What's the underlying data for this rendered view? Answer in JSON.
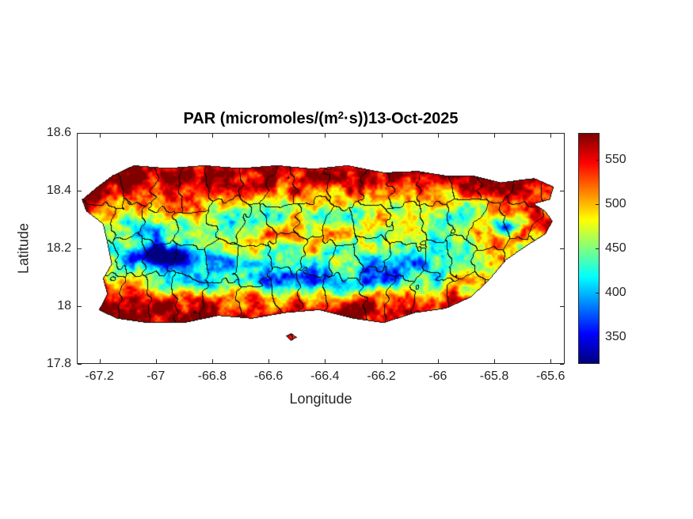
{
  "chart_data": {
    "type": "heatmap",
    "title": "PAR (micromoles/(m^2·s))13-Oct-2025",
    "title_parts": {
      "prefix": "PAR (micromoles/(m",
      "superscript": "2",
      "suffix": "·s))13-Oct-2025"
    },
    "variable": "PAR",
    "units": "micromoles/(m^2·s)",
    "date": "13-Oct-2025",
    "xlabel": "Longitude",
    "ylabel": "Latitude",
    "xlim": [
      -67.28,
      -65.55
    ],
    "ylim": [
      17.8,
      18.6
    ],
    "x_ticks": {
      "values": [
        -67.2,
        -67,
        -66.8,
        -66.6,
        -66.4,
        -66.2,
        -66,
        -65.8,
        -65.6
      ],
      "labels": [
        "-67.2",
        "-67",
        "-66.8",
        "-66.6",
        "-66.4",
        "-66.2",
        "-66",
        "-65.8",
        "-65.6"
      ]
    },
    "y_ticks": {
      "values": [
        17.8,
        18,
        18.2,
        18.4,
        18.6
      ],
      "labels": [
        "17.8",
        "18",
        "18.2",
        "18.4",
        "18.6"
      ]
    },
    "grid": false,
    "legend": "none",
    "colorbar": {
      "position": "right",
      "colormap": "jet",
      "min": 320,
      "max": 580,
      "ticks": {
        "values": [
          350,
          400,
          450,
          500,
          550
        ],
        "labels": [
          "350",
          "400",
          "450",
          "500",
          "550"
        ]
      }
    },
    "region": "Puerto Rico with municipality boundaries",
    "description": "PAR raster over Puerto Rico: high values (~520-580, red) along north, west and south coastal plains; lower values (~350-460, cyan/green) along the central mountain ridge; deepest lows (dark blue, ~320-350) west-central near (-66.97,18.17) and east near El Yunque (-65.76,18.28).",
    "map": {
      "polygons": {
        "main_island": [
          [
            -67.155,
            18.455
          ],
          [
            -67.08,
            18.49
          ],
          [
            -66.96,
            18.48
          ],
          [
            -66.83,
            18.49
          ],
          [
            -66.7,
            18.48
          ],
          [
            -66.57,
            18.49
          ],
          [
            -66.44,
            18.478
          ],
          [
            -66.32,
            18.49
          ],
          [
            -66.19,
            18.465
          ],
          [
            -66.07,
            18.47
          ],
          [
            -65.975,
            18.455
          ],
          [
            -65.875,
            18.455
          ],
          [
            -65.775,
            18.43
          ],
          [
            -65.7,
            18.44
          ],
          [
            -65.655,
            18.445
          ],
          [
            -65.585,
            18.415
          ],
          [
            -65.6,
            18.37
          ],
          [
            -65.655,
            18.355
          ],
          [
            -65.615,
            18.33
          ],
          [
            -65.59,
            18.295
          ],
          [
            -65.615,
            18.25
          ],
          [
            -65.68,
            18.21
          ],
          [
            -65.755,
            18.16
          ],
          [
            -65.815,
            18.09
          ],
          [
            -65.88,
            18.03
          ],
          [
            -65.97,
            17.99
          ],
          [
            -66.08,
            17.975
          ],
          [
            -66.19,
            17.94
          ],
          [
            -66.3,
            17.955
          ],
          [
            -66.42,
            17.985
          ],
          [
            -66.54,
            17.975
          ],
          [
            -66.66,
            17.955
          ],
          [
            -66.78,
            17.965
          ],
          [
            -66.9,
            17.94
          ],
          [
            -67.03,
            17.94
          ],
          [
            -67.14,
            17.955
          ],
          [
            -67.205,
            17.985
          ],
          [
            -67.175,
            18.04
          ],
          [
            -67.19,
            18.095
          ],
          [
            -67.16,
            18.145
          ],
          [
            -67.175,
            18.22
          ],
          [
            -67.19,
            18.285
          ],
          [
            -67.25,
            18.33
          ],
          [
            -67.265,
            18.37
          ],
          [
            -67.21,
            18.415
          ]
        ],
        "caja_de_muertos_islet": [
          [
            -66.54,
            17.895
          ],
          [
            -66.52,
            17.905
          ],
          [
            -66.5,
            17.89
          ],
          [
            -66.52,
            17.878
          ]
        ]
      }
    },
    "field": {
      "base": 520,
      "coast_boost": 48,
      "ridge": {
        "lat": 18.15,
        "width": 0.095,
        "amplitude": 100,
        "lon_from": -67.12,
        "lon_to": -66.02
      },
      "bands": [
        {
          "lat": 18.32,
          "width": 0.05,
          "depth": 55,
          "lon_from": -66.65,
          "lon_to": -65.92
        },
        {
          "lat": 18.28,
          "width": 0.05,
          "depth": 55,
          "lon_from": -67.15,
          "lon_to": -66.75
        },
        {
          "lat": 18.08,
          "width": 0.035,
          "depth": 45,
          "lon_from": -66.95,
          "lon_to": -66.25
        }
      ],
      "low_spots": [
        {
          "lon": -66.97,
          "lat": 18.17,
          "rx": 0.1,
          "ry": 0.035,
          "depth": 160
        },
        {
          "lon": -65.76,
          "lat": 18.28,
          "rx": 0.05,
          "ry": 0.03,
          "depth": 150
        },
        {
          "lon": -66.1,
          "lat": 18.09,
          "rx": 0.14,
          "ry": 0.05,
          "depth": 55
        }
      ]
    }
  }
}
